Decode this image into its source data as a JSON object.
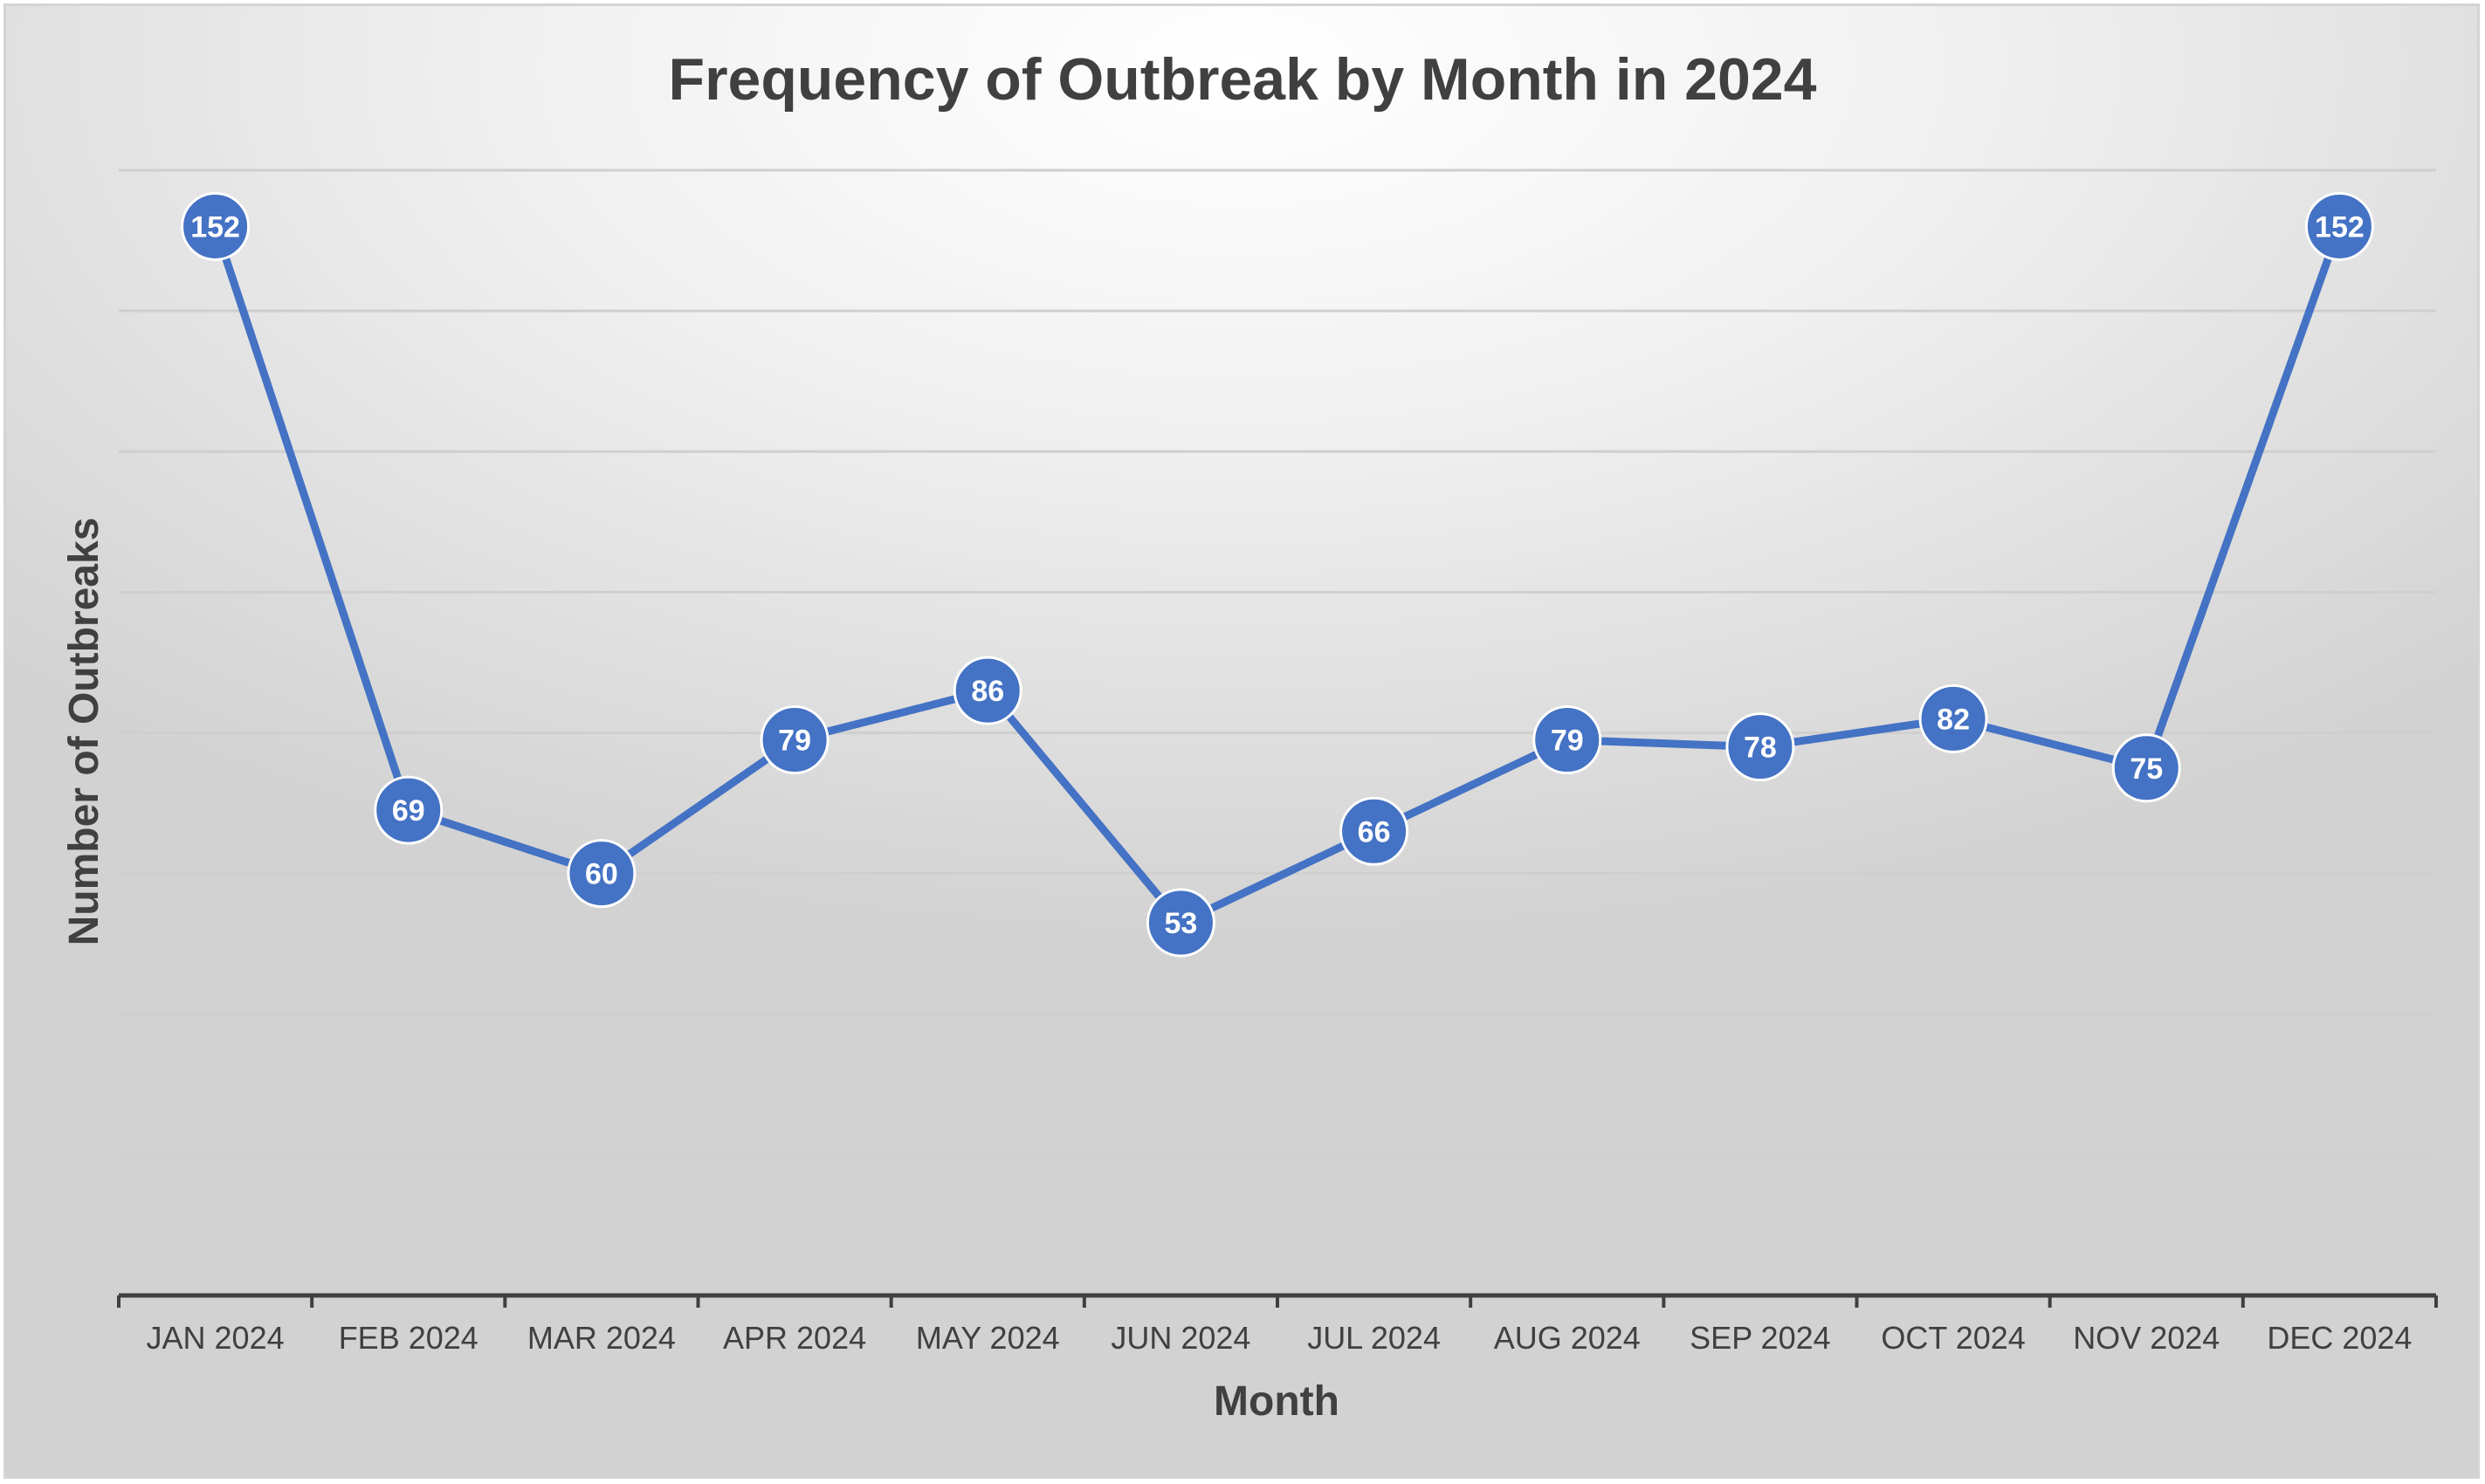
{
  "chart_data": {
    "type": "line",
    "title": "Frequency of Outbreak by Month in 2024",
    "xlabel": "Month",
    "ylabel": "Number  of Outbreaks",
    "categories": [
      "JAN 2024",
      "FEB 2024",
      "MAR 2024",
      "APR 2024",
      "MAY 2024",
      "JUN 2024",
      "JUL 2024",
      "AUG 2024",
      "SEP 2024",
      "OCT 2024",
      "NOV 2024",
      "DEC 2024"
    ],
    "series": [
      {
        "values": [
          152,
          69,
          60,
          79,
          86,
          53,
          66,
          79,
          78,
          82,
          75,
          152
        ]
      }
    ],
    "ylim": [
      0,
      160
    ],
    "gridlines": [
      0,
      20,
      40,
      60,
      80,
      100,
      120,
      140,
      160
    ],
    "grid": true,
    "legend": "none",
    "data_labels": true,
    "colors": {
      "series": "#4472C4",
      "grid": "#cfcfcf",
      "axis": "#404040",
      "text": "#404040"
    }
  }
}
